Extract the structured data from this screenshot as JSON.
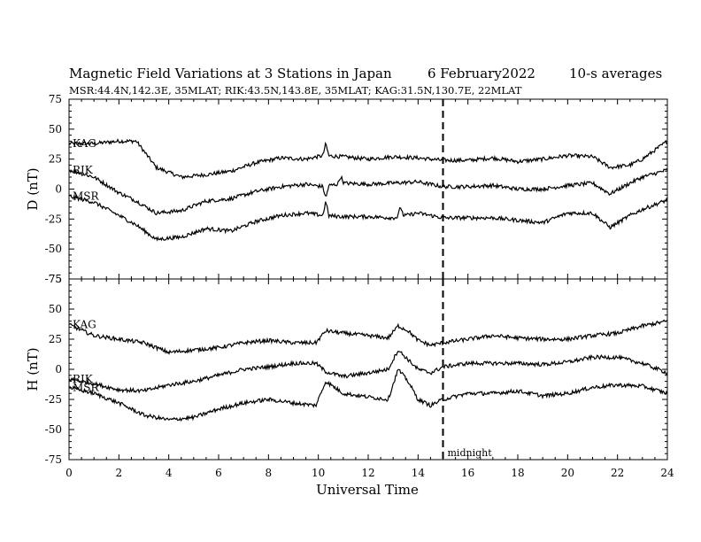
{
  "header": {
    "title": "Magnetic Field Variations at 3 Stations in Japan",
    "date": "6   February2022",
    "averaging": "10-s averages",
    "stations": "MSR:44.4N,142.3E, 35MLAT;  RIK:43.5N,143.8E, 35MLAT;  KAG:31.5N,130.7E, 22MLAT"
  },
  "chart_data": [
    {
      "type": "line",
      "panel": "top",
      "ylabel": "D (nT)",
      "xlabel": "",
      "xlim": [
        0,
        24
      ],
      "ylim": [
        -75,
        75
      ],
      "yticks": [
        -75,
        -50,
        -25,
        0,
        25,
        50,
        75
      ],
      "xticks": [
        0,
        2,
        4,
        6,
        8,
        10,
        12,
        14,
        16,
        18,
        20,
        22,
        24
      ],
      "x": [
        0,
        1,
        2,
        2.7,
        3.5,
        4.5,
        5.5,
        6.5,
        7.5,
        8.5,
        9.5,
        10.2,
        11,
        12,
        13,
        14,
        15,
        16,
        17,
        18,
        19,
        20,
        21,
        21.7,
        22.5,
        23,
        24
      ],
      "series": [
        {
          "name": "KAG",
          "values": [
            38,
            38,
            40,
            40,
            18,
            10,
            12,
            15,
            22,
            26,
            25,
            28,
            27,
            25,
            27,
            26,
            24,
            24,
            26,
            23,
            25,
            28,
            27,
            18,
            20,
            25,
            40
          ]
        },
        {
          "name": "RIK",
          "values": [
            16,
            10,
            -3,
            -10,
            -20,
            -18,
            -10,
            -8,
            -2,
            2,
            4,
            2,
            5,
            4,
            5,
            6,
            2,
            2,
            3,
            0,
            0,
            3,
            5,
            -4,
            5,
            10,
            16
          ]
        },
        {
          "name": "MSR",
          "values": [
            -6,
            -11,
            -22,
            -30,
            -42,
            -40,
            -33,
            -35,
            -27,
            -22,
            -20,
            -22,
            -23,
            -23,
            -24,
            -20,
            -24,
            -24,
            -24,
            -26,
            -28,
            -20,
            -20,
            -32,
            -22,
            -17,
            -9
          ]
        }
      ],
      "spikes": [
        {
          "series": "KAG",
          "x": 10.3,
          "dy": 10
        },
        {
          "series": "RIK",
          "x": 10.3,
          "dy": -10
        },
        {
          "series": "MSR",
          "x": 10.3,
          "dy": 12
        },
        {
          "series": "RIK",
          "x": 10.9,
          "dy": 6
        },
        {
          "series": "MSR",
          "x": 13.3,
          "dy": 8
        }
      ],
      "annotations": [
        {
          "x": 15,
          "style": "dashed-vertical"
        }
      ]
    },
    {
      "type": "line",
      "panel": "bottom",
      "ylabel": "H (nT)",
      "xlabel": "Universal Time",
      "xlim": [
        0,
        24
      ],
      "ylim": [
        -75,
        75
      ],
      "yticks": [
        -75,
        -50,
        -25,
        0,
        25,
        50,
        75
      ],
      "xticks": [
        0,
        2,
        4,
        6,
        8,
        10,
        12,
        14,
        16,
        18,
        20,
        22,
        24
      ],
      "x": [
        0,
        1,
        2,
        3,
        4,
        5,
        6,
        7,
        8,
        9,
        9.9,
        10.3,
        11,
        12,
        12.8,
        13.2,
        13.6,
        14,
        14.5,
        15,
        16,
        17,
        18,
        19,
        20,
        21,
        22,
        23,
        24
      ],
      "series": [
        {
          "name": "KAG",
          "values": [
            37,
            28,
            25,
            22,
            14,
            16,
            18,
            22,
            24,
            22,
            22,
            32,
            30,
            28,
            26,
            36,
            32,
            24,
            20,
            22,
            25,
            28,
            26,
            25,
            25,
            28,
            30,
            36,
            40
          ]
        },
        {
          "name": "RIK",
          "values": [
            -8,
            -12,
            -17,
            -18,
            -13,
            -10,
            -5,
            0,
            2,
            5,
            5,
            -2,
            -6,
            -3,
            0,
            16,
            8,
            0,
            -3,
            2,
            5,
            5,
            5,
            4,
            6,
            10,
            10,
            5,
            -3
          ]
        },
        {
          "name": "MSR",
          "values": [
            -15,
            -20,
            -28,
            -38,
            -42,
            -40,
            -33,
            -28,
            -25,
            -28,
            -30,
            -10,
            -20,
            -23,
            -25,
            0,
            -10,
            -25,
            -30,
            -25,
            -20,
            -20,
            -18,
            -22,
            -20,
            -15,
            -13,
            -14,
            -20
          ]
        }
      ],
      "annotations": [
        {
          "x": 15,
          "style": "dashed-vertical",
          "text": "midnight"
        }
      ]
    }
  ]
}
